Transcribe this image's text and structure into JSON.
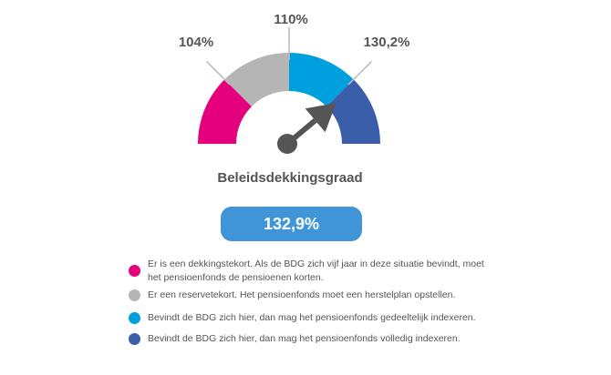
{
  "chart_data": {
    "type": "gauge",
    "title": "Beleidsdekkingsgraad",
    "value": 132.9,
    "value_label": "132,9%",
    "thresholds": [
      {
        "value": 104,
        "label": "104%"
      },
      {
        "value": 110,
        "label": "110%"
      },
      {
        "value": 130.2,
        "label": "130,2%"
      }
    ],
    "segments": [
      {
        "color": "#e5007e"
      },
      {
        "color": "#b5b5b5"
      },
      {
        "color": "#00a0df"
      },
      {
        "color": "#3b5eab"
      }
    ],
    "pointer_color": "#555555",
    "value_color": "#3f95d8"
  },
  "legend": [
    {
      "color": "#e5007e",
      "text": "Er is een dekkingstekort. Als de BDG zich vijf jaar in deze situatie bevindt, moet het pensioenfonds de pensioenen korten."
    },
    {
      "color": "#b5b5b5",
      "text": "Er een reservetekort. Het pensioenfonds moet een herstelplan opstellen."
    },
    {
      "color": "#00a0df",
      "text": "Bevindt de BDG zich hier, dan mag het pensioenfonds gedeeltelijk indexeren."
    },
    {
      "color": "#3b5eab",
      "text": "Bevindt de BDG zich hier, dan mag het pensioenfonds volledig indexeren."
    }
  ]
}
